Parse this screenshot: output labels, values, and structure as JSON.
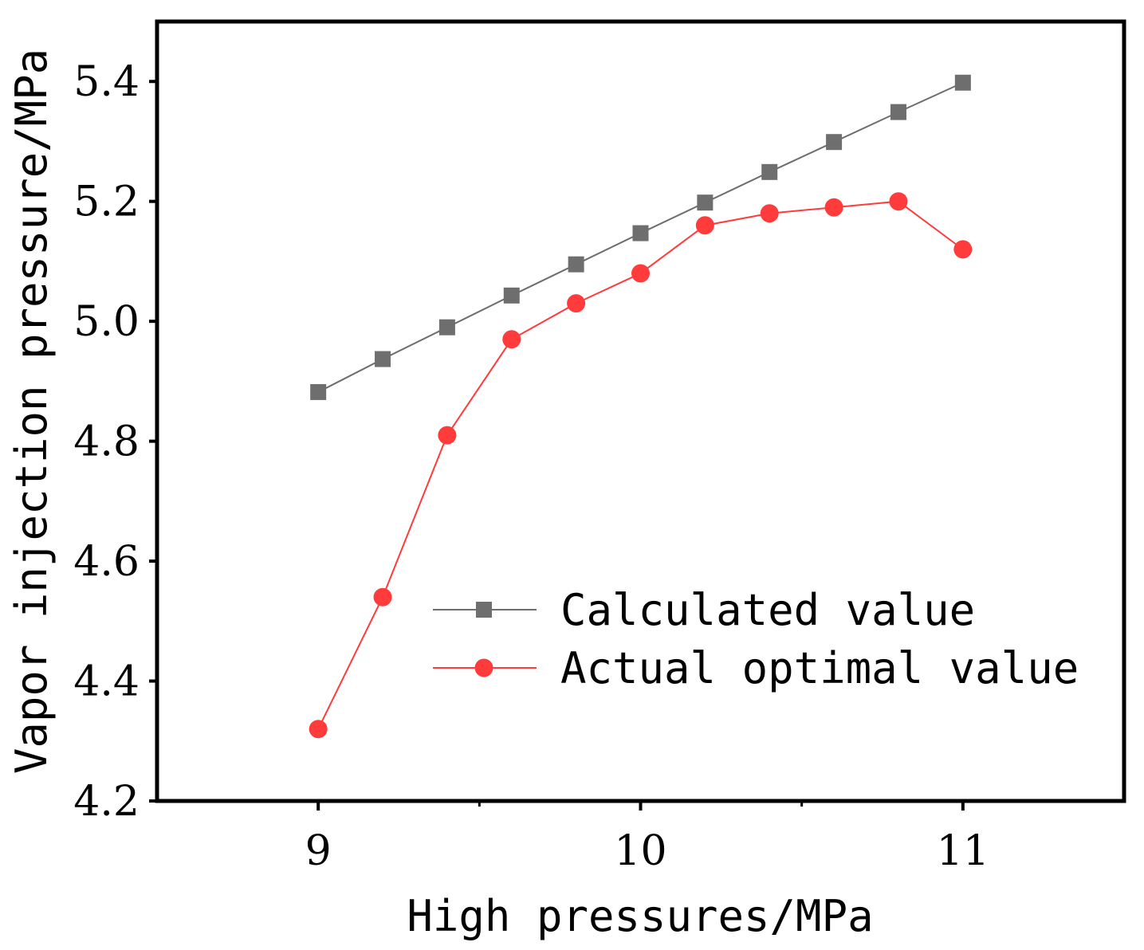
{
  "chart_data": {
    "type": "line",
    "title": "",
    "xlabel": "High pressures/MPa",
    "ylabel": "Vapor injection pressure/MPa",
    "xlim": [
      8.5,
      11.5
    ],
    "ylim": [
      4.2,
      5.5
    ],
    "xticks": [
      9,
      10,
      11
    ],
    "xtick_labels": [
      "9",
      "10",
      "11"
    ],
    "xminor_ticks": [
      9.5,
      10.5
    ],
    "yticks": [
      4.2,
      4.4,
      4.6,
      4.8,
      5.0,
      5.2,
      5.4
    ],
    "ytick_labels": [
      "4.2",
      "4.4",
      "4.6",
      "4.8",
      "5.0",
      "5.2",
      "5.4"
    ],
    "grid": false,
    "legend_position": "center-right",
    "series": [
      {
        "name": "Calculated value",
        "marker": "square",
        "color": "#6e6e6e",
        "x": [
          9.0,
          9.2,
          9.4,
          9.6,
          9.8,
          10.0,
          10.2,
          10.4,
          10.6,
          10.8,
          11.0
        ],
        "y": [
          4.882,
          4.937,
          4.99,
          5.043,
          5.095,
          5.147,
          5.198,
          5.249,
          5.299,
          5.349,
          5.398
        ]
      },
      {
        "name": "Actual optimal value",
        "marker": "circle",
        "color": "#ff3b3b",
        "x": [
          9.0,
          9.2,
          9.4,
          9.6,
          9.8,
          10.0,
          10.2,
          10.4,
          10.6,
          10.8,
          11.0
        ],
        "y": [
          4.32,
          4.54,
          4.81,
          4.97,
          5.03,
          5.08,
          5.16,
          5.18,
          5.19,
          5.2,
          5.12
        ]
      }
    ]
  }
}
